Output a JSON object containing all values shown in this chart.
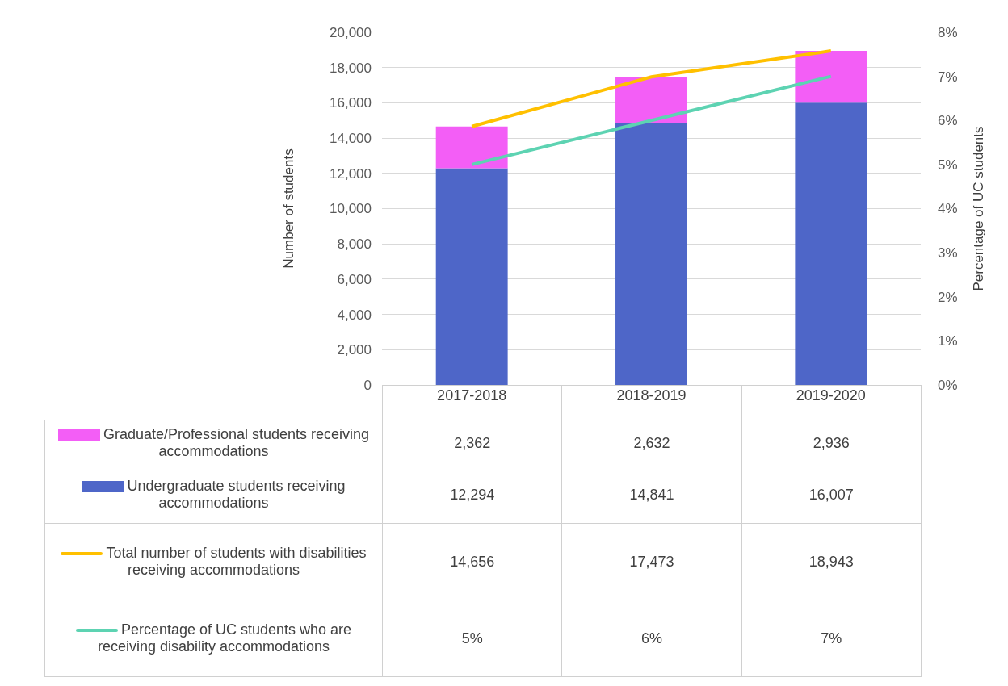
{
  "chart_data": {
    "type": "bar",
    "stacked": true,
    "grid": "y",
    "legend": "bottom",
    "categories": [
      "2017-2018",
      "2018-2019",
      "2019-2020"
    ],
    "ylabel": "Number of students",
    "y2label": "Percentage of UC students",
    "ylim": [
      0,
      20000
    ],
    "yticks": [
      0,
      {
        "value": 2000,
        "label": "2,000"
      },
      {
        "value": 4000,
        "label": "4,000"
      },
      {
        "value": 6000,
        "label": "6,000"
      },
      {
        "value": 8000,
        "label": "8,000"
      },
      {
        "value": 10000,
        "label": "10,000"
      },
      {
        "value": 12000,
        "label": "12,000"
      },
      {
        "value": 14000,
        "label": "14,000"
      },
      {
        "value": 16000,
        "label": "16,000"
      },
      {
        "value": 18000,
        "label": "18,000"
      },
      {
        "value": 20000,
        "label": "20,000"
      }
    ],
    "y2lim": [
      0,
      8
    ],
    "y2ticks": [
      {
        "value": 0,
        "label": "0%"
      },
      {
        "value": 1,
        "label": "1%"
      },
      {
        "value": 2,
        "label": "2%"
      },
      {
        "value": 3,
        "label": "3%"
      },
      {
        "value": 4,
        "label": "4%"
      },
      {
        "value": 5,
        "label": "5%"
      },
      {
        "value": 6,
        "label": "6%"
      },
      {
        "value": 7,
        "label": "7%"
      },
      {
        "value": 8,
        "label": "8%"
      }
    ],
    "series": [
      {
        "name": "Undergraduate students receiving accommodations",
        "color": "#4e66c8",
        "values": [
          12294,
          14841,
          16007
        ],
        "value_labels": [
          "12,294",
          "14,841",
          "16,007"
        ]
      },
      {
        "name": "Graduate/Professional students receiving accommodations",
        "color": "#f35ef6",
        "values": [
          2362,
          2632,
          2936
        ],
        "value_labels": [
          "2,362",
          "2,632",
          "2,936"
        ]
      },
      {
        "name": "Total number of students with disabilities receiving accommodations",
        "type": "line",
        "color": "#ffc000",
        "values": [
          14656,
          17473,
          18943
        ],
        "value_labels": [
          "14,656",
          "17,473",
          "18,943"
        ]
      },
      {
        "name": "Percentage of UC students who are receiving disability accommodations",
        "type": "line",
        "axis": "y2",
        "color": "#5dd3b2",
        "values": [
          5,
          6,
          7
        ],
        "value_labels": [
          "5%",
          "6%",
          "7%"
        ]
      }
    ]
  }
}
